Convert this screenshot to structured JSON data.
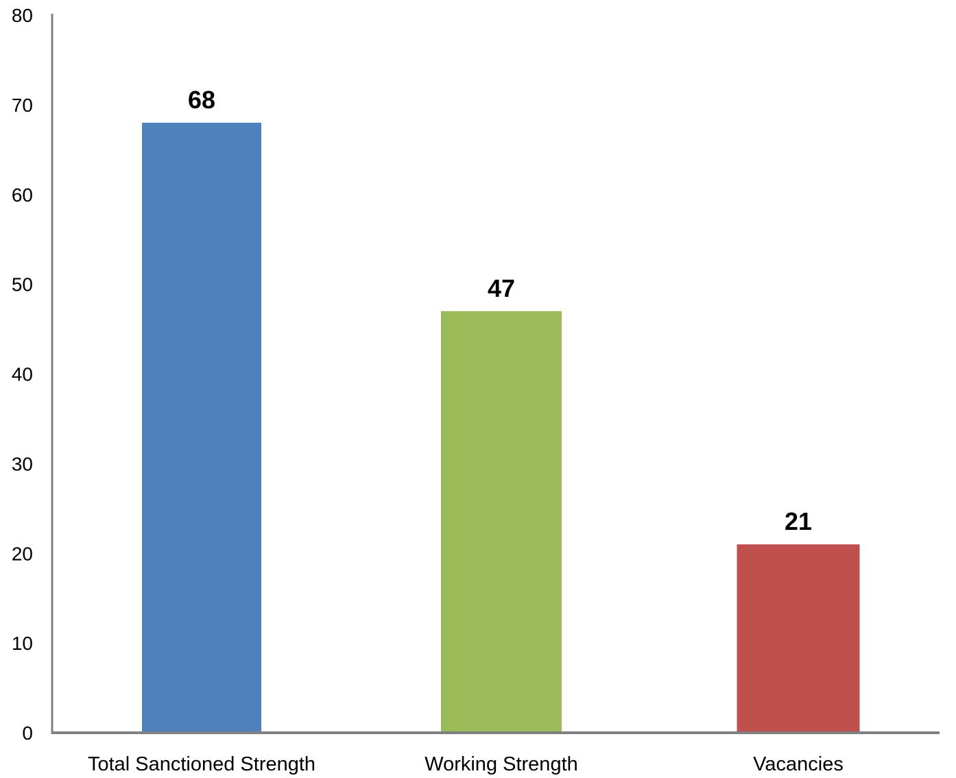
{
  "chart_data": {
    "type": "bar",
    "categories": [
      "Total Sanctioned Strength",
      "Working Strength",
      "Vacancies"
    ],
    "values": [
      68,
      47,
      21
    ],
    "data_labels": [
      "68",
      "47",
      "21"
    ],
    "colors": [
      "#4f81bd",
      "#9bbb59",
      "#c0504d"
    ],
    "title": "",
    "xlabel": "",
    "ylabel": "",
    "ylim": [
      0,
      80
    ],
    "yticks": [
      0,
      10,
      20,
      30,
      40,
      50,
      60,
      70,
      80
    ],
    "grid": false,
    "legend": false,
    "axis_color": "#808080"
  }
}
